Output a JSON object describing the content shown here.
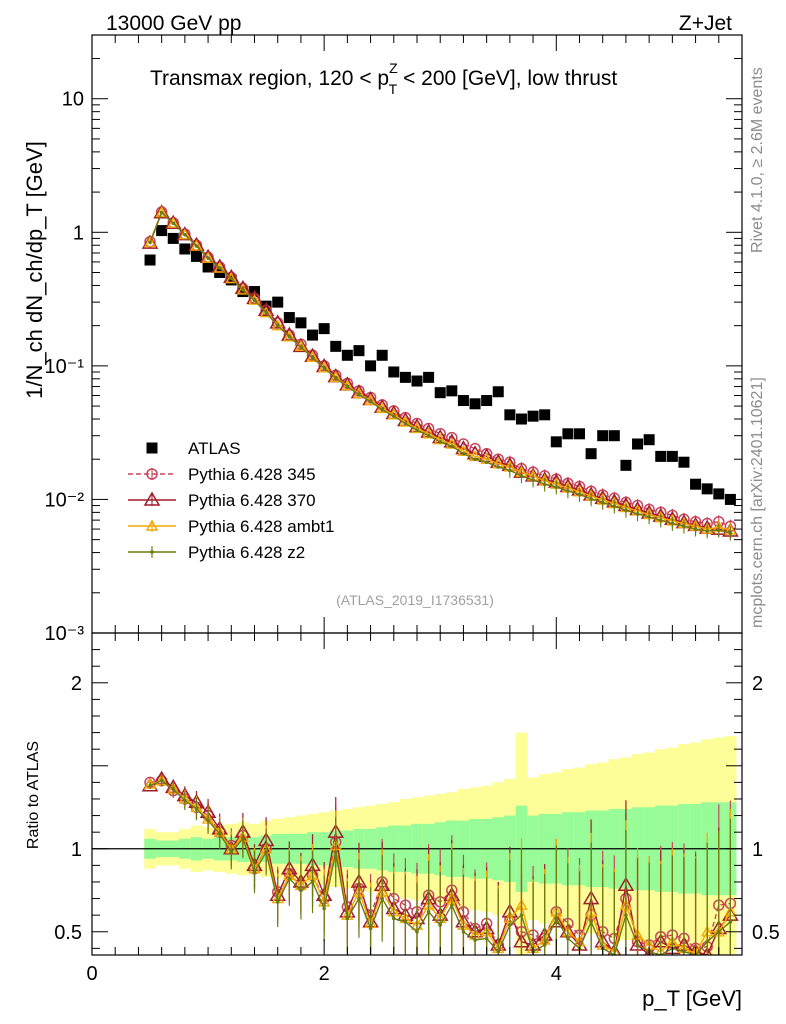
{
  "header": {
    "energy_label": "13000 GeV pp",
    "process_label": "Z+Jet",
    "plot_title_pre": "Transmax region, 120 < p",
    "plot_title_sup": "Z",
    "plot_title_sub": "T",
    "plot_title_post": " < 200 [GeV], low thrust",
    "analysis_id": "(ATLAS_2019_I1736531)"
  },
  "side_text": {
    "rivet": "Rivet 4.1.0, ≥ 2.6M events",
    "mcplots": "mcplots.cern.ch [arXiv:2401.10621]"
  },
  "colors": {
    "data": "#000000",
    "p345": "#c8455d",
    "p370": "#a01d2c",
    "ambt1": "#f2a900",
    "z2": "#6b7a12",
    "band_inner": "#97fb97",
    "band_outer": "#fefe98"
  },
  "chart_data": [
    {
      "type": "scatter",
      "scale": "log",
      "ylabel": "1/N_ch dN_ch/dp_T [GeV]",
      "ylim": [
        0.001,
        30
      ],
      "yticks": [
        {
          "value": 0.001,
          "label": "10⁻³"
        },
        {
          "value": 0.01,
          "label": "10⁻²"
        },
        {
          "value": 0.1,
          "label": "10⁻¹"
        },
        {
          "value": 1,
          "label": "1"
        },
        {
          "value": 10,
          "label": "10"
        }
      ],
      "x": [
        0.5,
        0.6,
        0.7,
        0.8,
        0.9,
        1.0,
        1.1,
        1.2,
        1.3,
        1.4,
        1.5,
        1.6,
        1.7,
        1.8,
        1.9,
        2.0,
        2.1,
        2.2,
        2.3,
        2.4,
        2.5,
        2.6,
        2.7,
        2.8,
        2.9,
        3.0,
        3.1,
        3.2,
        3.3,
        3.4,
        3.5,
        3.6,
        3.7,
        3.8,
        3.9,
        4.0,
        4.1,
        4.2,
        4.3,
        4.4,
        4.5,
        4.6,
        4.7,
        4.8,
        4.9,
        5.0,
        5.1,
        5.2,
        5.3,
        5.4,
        5.5
      ],
      "series": [
        {
          "name": "ATLAS",
          "marker": "square",
          "values": [
            0.62,
            1.03,
            0.9,
            0.75,
            0.66,
            0.55,
            0.5,
            0.44,
            0.36,
            0.36,
            0.28,
            0.3,
            0.23,
            0.21,
            0.17,
            0.19,
            0.14,
            0.12,
            0.13,
            0.1,
            0.12,
            0.09,
            0.082,
            0.077,
            0.082,
            0.063,
            0.065,
            0.055,
            0.052,
            0.055,
            0.064,
            0.043,
            0.04,
            0.042,
            0.043,
            0.027,
            0.031,
            0.031,
            0.022,
            0.03,
            0.03,
            0.018,
            0.026,
            0.028,
            0.021,
            0.021,
            0.019,
            0.013,
            0.012,
            0.011,
            0.01
          ]
        },
        {
          "name": "Pythia 6.428 345",
          "marker": "circle",
          "dashed": true,
          "values": [
            0.85,
            1.42,
            1.18,
            0.97,
            0.8,
            0.65,
            0.55,
            0.46,
            0.38,
            0.32,
            0.26,
            0.21,
            0.17,
            0.145,
            0.12,
            0.1,
            0.085,
            0.074,
            0.065,
            0.058,
            0.051,
            0.046,
            0.041,
            0.037,
            0.034,
            0.031,
            0.029,
            0.026,
            0.024,
            0.022,
            0.02,
            0.019,
            0.017,
            0.016,
            0.015,
            0.0142,
            0.0132,
            0.0125,
            0.0115,
            0.0108,
            0.0102,
            0.0095,
            0.009,
            0.0084,
            0.008,
            0.0076,
            0.0071,
            0.0068,
            0.0066,
            0.0068,
            0.0063
          ]
        },
        {
          "name": "Pythia 6.428 370",
          "marker": "triangle",
          "values": [
            0.83,
            1.4,
            1.17,
            0.96,
            0.8,
            0.65,
            0.55,
            0.46,
            0.38,
            0.32,
            0.26,
            0.21,
            0.17,
            0.14,
            0.118,
            0.099,
            0.083,
            0.072,
            0.063,
            0.056,
            0.049,
            0.044,
            0.039,
            0.035,
            0.032,
            0.029,
            0.027,
            0.024,
            0.022,
            0.021,
            0.019,
            0.018,
            0.016,
            0.015,
            0.014,
            0.0135,
            0.0125,
            0.0118,
            0.0108,
            0.0102,
            0.0096,
            0.009,
            0.0084,
            0.0079,
            0.0075,
            0.0071,
            0.0067,
            0.0064,
            0.0061,
            0.006,
            0.0058
          ]
        },
        {
          "name": "Pythia 6.428 ambt1",
          "marker": "smalltriangle",
          "values": [
            0.84,
            1.41,
            1.17,
            0.96,
            0.79,
            0.64,
            0.54,
            0.45,
            0.37,
            0.31,
            0.25,
            0.2,
            0.165,
            0.14,
            0.116,
            0.097,
            0.082,
            0.071,
            0.062,
            0.055,
            0.048,
            0.043,
            0.038,
            0.034,
            0.031,
            0.028,
            0.026,
            0.023,
            0.021,
            0.02,
            0.0185,
            0.0175,
            0.016,
            0.015,
            0.0138,
            0.013,
            0.0122,
            0.0114,
            0.0106,
            0.0099,
            0.0093,
            0.0087,
            0.0082,
            0.0077,
            0.0073,
            0.0069,
            0.0066,
            0.0063,
            0.006,
            0.0062,
            0.0059
          ]
        },
        {
          "name": "Pythia 6.428 z2",
          "marker": "dot",
          "values": [
            0.84,
            1.41,
            1.17,
            0.96,
            0.79,
            0.64,
            0.54,
            0.45,
            0.37,
            0.31,
            0.25,
            0.2,
            0.165,
            0.138,
            0.115,
            0.096,
            0.081,
            0.07,
            0.061,
            0.054,
            0.047,
            0.042,
            0.037,
            0.033,
            0.03,
            0.027,
            0.025,
            0.022,
            0.02,
            0.019,
            0.0175,
            0.0165,
            0.015,
            0.014,
            0.013,
            0.0124,
            0.0116,
            0.0109,
            0.0101,
            0.0095,
            0.0089,
            0.0083,
            0.0078,
            0.0074,
            0.007,
            0.0066,
            0.0063,
            0.006,
            0.0058,
            0.0059,
            0.0056
          ]
        }
      ]
    },
    {
      "type": "line",
      "ylabel": "Ratio to ATLAS",
      "xlabel": "p_T [GeV]",
      "xlim": [
        0,
        5.6
      ],
      "ylim": [
        0.36,
        2.3
      ],
      "xticks": [
        0,
        2,
        4
      ],
      "yticks": [
        0.5,
        1,
        2
      ],
      "band_inner_halfwidth": [
        0.06,
        0.05,
        0.05,
        0.06,
        0.07,
        0.06,
        0.07,
        0.07,
        0.08,
        0.07,
        0.08,
        0.09,
        0.09,
        0.09,
        0.1,
        0.1,
        0.11,
        0.11,
        0.12,
        0.12,
        0.13,
        0.14,
        0.14,
        0.15,
        0.15,
        0.16,
        0.17,
        0.17,
        0.18,
        0.18,
        0.19,
        0.2,
        0.26,
        0.2,
        0.21,
        0.21,
        0.22,
        0.22,
        0.23,
        0.23,
        0.24,
        0.24,
        0.25,
        0.25,
        0.26,
        0.26,
        0.27,
        0.27,
        0.28,
        0.28,
        0.28
      ],
      "band_outer_halfwidth": [
        0.12,
        0.1,
        0.1,
        0.12,
        0.14,
        0.13,
        0.14,
        0.15,
        0.16,
        0.15,
        0.17,
        0.18,
        0.19,
        0.2,
        0.21,
        0.22,
        0.23,
        0.24,
        0.25,
        0.26,
        0.27,
        0.28,
        0.3,
        0.31,
        0.32,
        0.33,
        0.34,
        0.36,
        0.37,
        0.38,
        0.4,
        0.42,
        0.7,
        0.43,
        0.45,
        0.46,
        0.48,
        0.49,
        0.51,
        0.52,
        0.54,
        0.55,
        0.57,
        0.58,
        0.6,
        0.61,
        0.63,
        0.64,
        0.66,
        0.67,
        0.68
      ],
      "series": [
        {
          "name": "Pythia 6.428 345",
          "values": [
            1.4,
            1.41,
            1.35,
            1.3,
            1.25,
            1.2,
            1.1,
            1.02,
            1.08,
            0.88,
            1.0,
            0.74,
            0.85,
            0.78,
            0.84,
            0.7,
            1.04,
            0.65,
            0.76,
            0.6,
            0.8,
            0.7,
            0.66,
            0.62,
            0.72,
            0.68,
            0.75,
            0.62,
            0.52,
            0.55,
            0.42,
            0.57,
            0.5,
            0.48,
            0.46,
            0.62,
            0.55,
            0.48,
            0.6,
            0.5,
            0.46,
            0.7,
            0.44,
            0.42,
            0.47,
            0.48,
            0.46,
            0.4,
            0.41,
            0.66,
            0.67
          ]
        },
        {
          "name": "Pythia 6.428 370",
          "values": [
            1.38,
            1.42,
            1.37,
            1.32,
            1.28,
            1.22,
            1.12,
            1.0,
            1.1,
            0.9,
            1.05,
            0.72,
            0.88,
            0.8,
            0.9,
            0.72,
            1.1,
            0.62,
            0.8,
            0.56,
            0.78,
            0.64,
            0.6,
            0.58,
            0.7,
            0.6,
            0.72,
            0.56,
            0.5,
            0.52,
            0.42,
            0.62,
            0.44,
            0.42,
            0.48,
            0.56,
            0.5,
            0.42,
            0.7,
            0.44,
            0.38,
            0.78,
            0.42,
            0.36,
            0.44,
            0.4,
            0.42,
            0.38,
            0.36,
            0.52,
            0.6
          ]
        },
        {
          "name": "Pythia 6.428 ambt1",
          "values": [
            1.39,
            1.41,
            1.36,
            1.3,
            1.25,
            1.18,
            1.1,
            1.0,
            1.07,
            0.88,
            1.0,
            0.7,
            0.84,
            0.78,
            0.84,
            0.68,
            1.02,
            0.6,
            0.74,
            0.55,
            0.74,
            0.62,
            0.58,
            0.54,
            0.66,
            0.58,
            0.7,
            0.54,
            0.48,
            0.5,
            0.4,
            0.58,
            0.66,
            0.4,
            0.45,
            0.62,
            0.5,
            0.44,
            0.62,
            0.42,
            0.38,
            0.66,
            0.48,
            0.42,
            0.38,
            0.44,
            0.4,
            0.37,
            0.5,
            0.5,
            0.62
          ]
        },
        {
          "name": "Pythia 6.428 z2",
          "values": [
            1.38,
            1.41,
            1.36,
            1.29,
            1.24,
            1.17,
            1.09,
            0.98,
            1.06,
            0.86,
            0.98,
            0.68,
            0.82,
            0.75,
            0.8,
            0.64,
            0.98,
            0.58,
            0.7,
            0.52,
            0.7,
            0.58,
            0.56,
            0.5,
            0.62,
            0.54,
            0.66,
            0.5,
            0.45,
            0.46,
            0.38,
            0.54,
            0.6,
            0.38,
            0.42,
            0.58,
            0.46,
            0.4,
            0.56,
            0.4,
            0.36,
            0.6,
            0.42,
            0.38,
            0.36,
            0.4,
            0.38,
            0.36,
            0.44,
            0.5,
            0.56
          ]
        }
      ]
    }
  ]
}
